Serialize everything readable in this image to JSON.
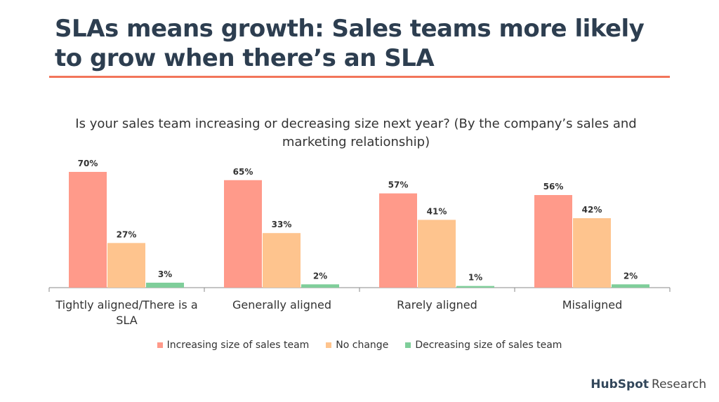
{
  "slide": {
    "title": "SLAs means growth: Sales teams more likely to grow when there’s an SLA",
    "accent_color": "#f2755a",
    "brand": {
      "name": "HubSpot",
      "suffix": "Research"
    }
  },
  "chart_data": {
    "type": "bar",
    "title": "Is your sales team increasing or decreasing size next year? (By the company’s sales and marketing relationship)",
    "categories": [
      "Tightly aligned/There is a SLA",
      "Generally aligned",
      "Rarely aligned",
      "Misaligned"
    ],
    "series": [
      {
        "name": "Increasing size of sales team",
        "color": "#ff9a8a",
        "values": [
          70,
          65,
          57,
          56
        ]
      },
      {
        "name": "No change",
        "color": "#fec48e",
        "values": [
          27,
          33,
          41,
          42
        ]
      },
      {
        "name": "Decreasing size of sales team",
        "color": "#7fce9a",
        "values": [
          3,
          2,
          1,
          2
        ]
      }
    ],
    "value_suffix": "%",
    "ylim": [
      0,
      70
    ],
    "legend": "bottom",
    "grid": false
  }
}
